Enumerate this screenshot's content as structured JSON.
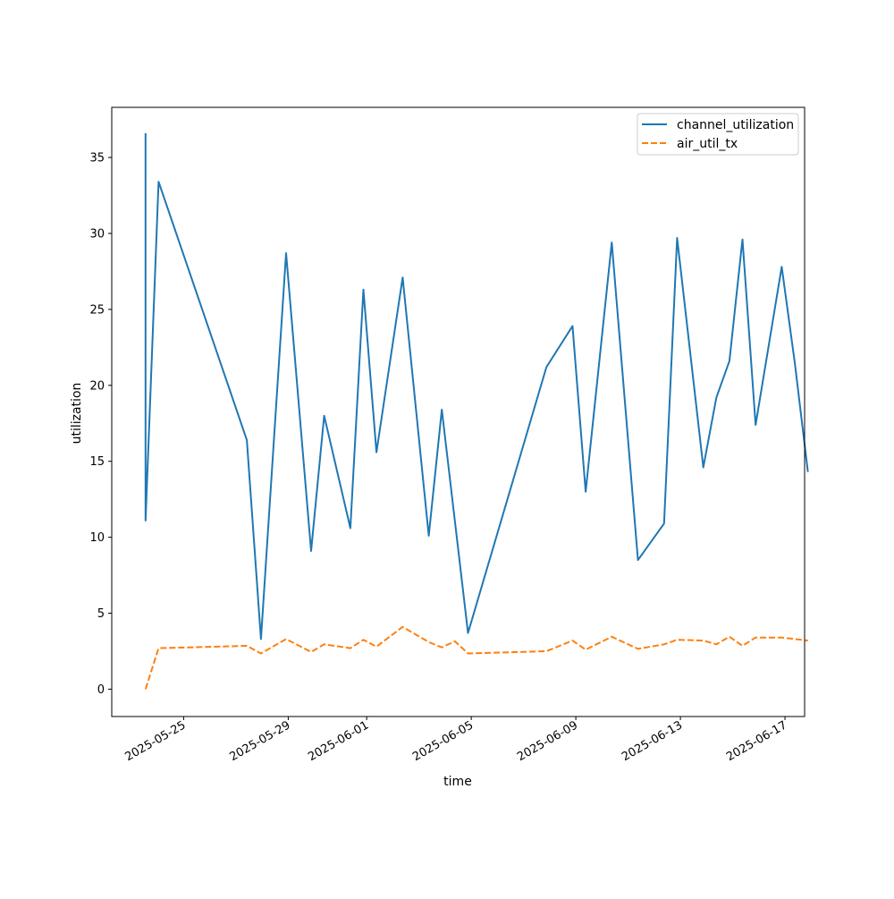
{
  "chart_data": {
    "type": "line",
    "xlabel": "time",
    "ylabel": "utilization",
    "x_scale": "date",
    "xlim": [
      "2025-05-22T06:00",
      "2025-06-17T18:00"
    ],
    "ylim": [
      -1.8,
      38.3
    ],
    "x_ticks": [
      "2025-05-25",
      "2025-05-29",
      "2025-06-01",
      "2025-06-05",
      "2025-06-09",
      "2025-06-13",
      "2025-06-17"
    ],
    "y_ticks": [
      0,
      5,
      10,
      15,
      20,
      25,
      30,
      35
    ],
    "grid": false,
    "legend_position": "top-right",
    "series": [
      {
        "name": "channel_utilization",
        "color": "#1f77b4",
        "style": "solid",
        "points": [
          [
            "2025-05-23T13:00",
            36.6
          ],
          [
            "2025-05-23T13:00",
            11.1
          ],
          [
            "2025-05-24T01:00",
            33.4
          ],
          [
            "2025-05-27T10:00",
            16.4
          ],
          [
            "2025-05-27T23:00",
            3.3
          ],
          [
            "2025-05-28T22:00",
            28.7
          ],
          [
            "2025-05-29T21:00",
            9.1
          ],
          [
            "2025-05-30T09:00",
            18.0
          ],
          [
            "2025-05-31T09:00",
            10.6
          ],
          [
            "2025-05-31T21:00",
            26.3
          ],
          [
            "2025-06-01T09:00",
            15.6
          ],
          [
            "2025-06-02T09:00",
            27.1
          ],
          [
            "2025-06-03T09:00",
            10.1
          ],
          [
            "2025-06-03T21:00",
            18.4
          ],
          [
            "2025-06-04T21:00",
            3.7
          ],
          [
            "2025-06-07T21:00",
            21.2
          ],
          [
            "2025-06-08T21:00",
            23.9
          ],
          [
            "2025-06-09T09:00",
            13.0
          ],
          [
            "2025-06-10T09:00",
            29.4
          ],
          [
            "2025-06-11T09:00",
            8.5
          ],
          [
            "2025-06-12T09:00",
            10.9
          ],
          [
            "2025-06-12T21:00",
            29.7
          ],
          [
            "2025-06-13T21:00",
            14.6
          ],
          [
            "2025-06-14T09:00",
            19.2
          ],
          [
            "2025-06-14T21:00",
            21.6
          ],
          [
            "2025-06-15T09:00",
            29.6
          ],
          [
            "2025-06-15T21:00",
            17.4
          ],
          [
            "2025-06-16T21:00",
            27.8
          ],
          [
            "2025-06-17T09:00",
            21.5
          ],
          [
            "2025-06-17T21:00",
            14.3
          ]
        ]
      },
      {
        "name": "air_util_tx",
        "color": "#ff7f0e",
        "style": "dashed",
        "points": [
          [
            "2025-05-23T13:00",
            0.0
          ],
          [
            "2025-05-24T01:00",
            2.7
          ],
          [
            "2025-05-27T10:00",
            2.85
          ],
          [
            "2025-05-27T23:00",
            2.35
          ],
          [
            "2025-05-28T22:00",
            3.3
          ],
          [
            "2025-05-29T21:00",
            2.45
          ],
          [
            "2025-05-30T09:00",
            2.95
          ],
          [
            "2025-05-31T09:00",
            2.7
          ],
          [
            "2025-05-31T21:00",
            3.25
          ],
          [
            "2025-06-01T09:00",
            2.8
          ],
          [
            "2025-06-02T09:00",
            4.1
          ],
          [
            "2025-06-03T09:00",
            3.1
          ],
          [
            "2025-06-03T21:00",
            2.75
          ],
          [
            "2025-06-04T09:00",
            3.15
          ],
          [
            "2025-06-04T21:00",
            2.35
          ],
          [
            "2025-06-07T21:00",
            2.5
          ],
          [
            "2025-06-08T21:00",
            3.2
          ],
          [
            "2025-06-09T09:00",
            2.6
          ],
          [
            "2025-06-10T09:00",
            3.45
          ],
          [
            "2025-06-11T09:00",
            2.65
          ],
          [
            "2025-06-12T09:00",
            2.95
          ],
          [
            "2025-06-12T21:00",
            3.25
          ],
          [
            "2025-06-13T21:00",
            3.2
          ],
          [
            "2025-06-14T09:00",
            2.95
          ],
          [
            "2025-06-14T21:00",
            3.45
          ],
          [
            "2025-06-15T09:00",
            2.85
          ],
          [
            "2025-06-15T21:00",
            3.4
          ],
          [
            "2025-06-16T21:00",
            3.4
          ],
          [
            "2025-06-17T21:00",
            3.2
          ]
        ]
      }
    ]
  }
}
